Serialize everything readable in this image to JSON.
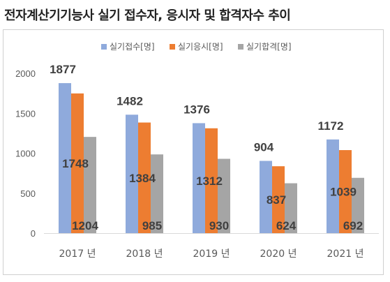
{
  "title": "전자계산기기능사 실기 접수자, 응시자 및 합격자수 추이",
  "chart_data": {
    "type": "bar",
    "categories": [
      "2017 년",
      "2018 년",
      "2019 년",
      "2020 년",
      "2021 년"
    ],
    "series": [
      {
        "name": "실기접수[명]",
        "values": [
          1877,
          1482,
          1376,
          904,
          1172
        ],
        "color": "#8faadc"
      },
      {
        "name": "실기응시[명]",
        "values": [
          1748,
          1384,
          1312,
          837,
          1039
        ],
        "color": "#ed7d31"
      },
      {
        "name": "실기합격[명]",
        "values": [
          1204,
          985,
          930,
          624,
          692
        ],
        "color": "#a5a5a5"
      }
    ],
    "yticks": [
      "0",
      "500",
      "1000",
      "1500",
      "2000"
    ],
    "ylim": [
      0,
      2000
    ],
    "grid": false,
    "legend_position": "top-center",
    "data_labels": true
  }
}
